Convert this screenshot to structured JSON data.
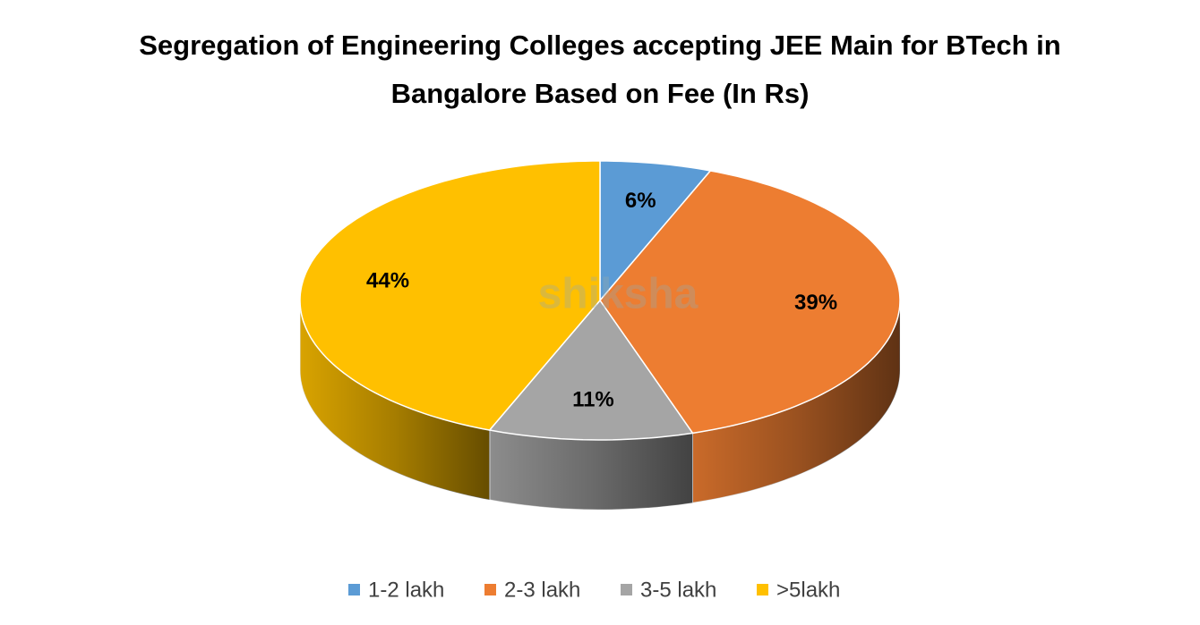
{
  "chart_data": {
    "type": "pie",
    "title": "Segregation of Engineering Colleges accepting JEE Main for BTech in Bangalore Based on Fee (In Rs)",
    "categories": [
      "1-2 lakh",
      "2-3 lakh",
      "3-5 lakh",
      ">5lakh"
    ],
    "values": [
      6,
      39,
      11,
      44
    ],
    "value_labels": [
      "6%",
      "39%",
      "11%",
      "44%"
    ],
    "colors": [
      "#5b9bd5",
      "#ed7d31",
      "#a5a5a5",
      "#ffc000"
    ],
    "legend": "bottom",
    "watermark": "shiksha"
  }
}
